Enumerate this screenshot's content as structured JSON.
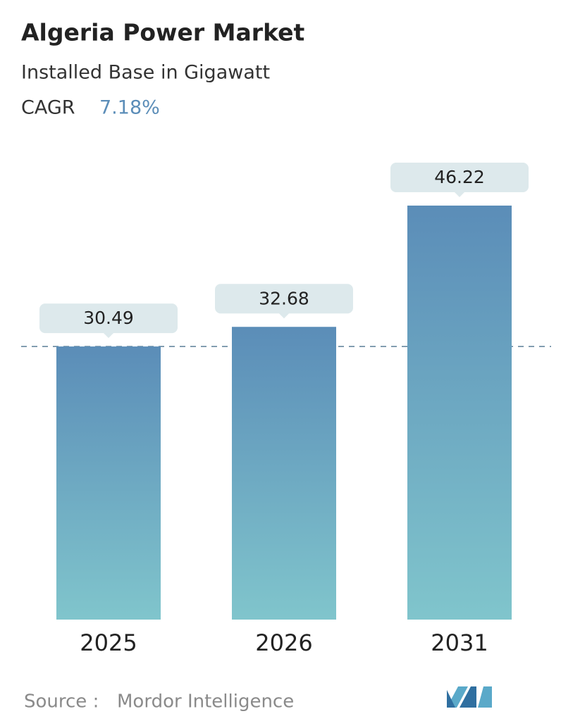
{
  "chart_data": {
    "type": "bar",
    "title": "Algeria Power Market",
    "subtitle": "Installed Base in Gigawatt",
    "cagr_label": "CAGR",
    "cagr": {
      "value": 7.18,
      "label": "7.18%"
    },
    "categories": [
      "2025",
      "2026",
      "2031"
    ],
    "values": [
      30.49,
      32.68,
      46.22
    ],
    "color_top": "#5b8db8",
    "color_bottom": "#80c5cc",
    "source_label": "Source :",
    "source": "Mordor Intelligence"
  }
}
